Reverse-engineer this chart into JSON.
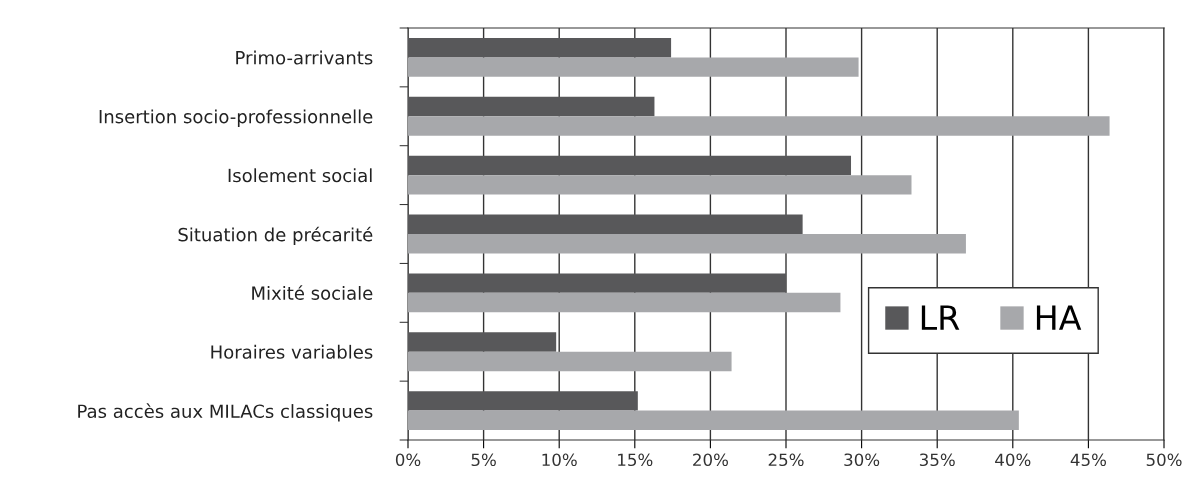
{
  "chart_data": {
    "type": "bar",
    "orientation": "horizontal",
    "categories": [
      "Primo-arrivants",
      "Insertion socio-professionnelle",
      "Isolement social",
      "Situation de précarité",
      "Mixité sociale",
      "Horaires variables",
      "Pas accès aux MILACs classiques"
    ],
    "series": [
      {
        "name": "LR",
        "color": "#58585a",
        "values": [
          17.4,
          16.3,
          29.3,
          26.1,
          25.0,
          9.8,
          15.2
        ]
      },
      {
        "name": "HA",
        "color": "#a7a8ab",
        "values": [
          29.8,
          46.4,
          33.3,
          36.9,
          28.6,
          21.4,
          40.4
        ]
      }
    ],
    "xlim": [
      0,
      50
    ],
    "xticks": [
      {
        "value": 0,
        "label": "0%"
      },
      {
        "value": 5,
        "label": "5%"
      },
      {
        "value": 10,
        "label": "10%"
      },
      {
        "value": 15,
        "label": "15%"
      },
      {
        "value": 20,
        "label": "20%"
      },
      {
        "value": 25,
        "label": "25%"
      },
      {
        "value": 30,
        "label": "30%"
      },
      {
        "value": 35,
        "label": "35%"
      },
      {
        "value": 40,
        "label": "40%"
      },
      {
        "value": 45,
        "label": "45%"
      },
      {
        "value": 50,
        "label": "50%"
      }
    ],
    "grid": "x",
    "legend": "bottom right"
  }
}
